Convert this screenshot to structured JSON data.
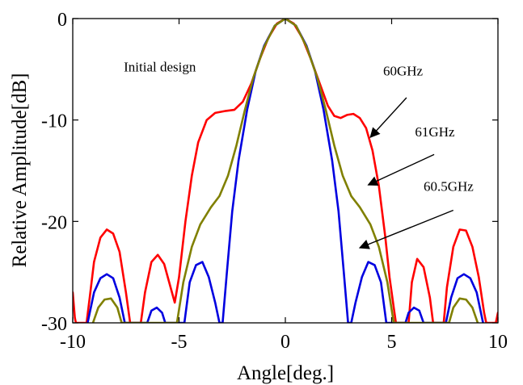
{
  "chart_data": {
    "type": "line",
    "title": "",
    "xlabel": "Angle[deg.]",
    "ylabel": "Relative Amplitude[dB]",
    "xlim": [
      -10,
      10
    ],
    "ylim": [
      -30,
      0
    ],
    "xticks": [
      -10,
      -5,
      0,
      5,
      10
    ],
    "yticks": [
      -30,
      -20,
      -10,
      0
    ],
    "xtick_labels": [
      "-10",
      "-5",
      "0",
      "5",
      "10"
    ],
    "ytick_labels": [
      "-30",
      "-20",
      "-10",
      "0"
    ],
    "grid": false,
    "legend": "none",
    "series": [
      {
        "name": "60GHz",
        "color": "#ff0000",
        "points": [
          [
            -10,
            -27.0
          ],
          [
            -9.9,
            -29.5
          ],
          [
            -9.85,
            -30
          ],
          [
            -9.35,
            -30
          ],
          [
            -9.2,
            -27.5
          ],
          [
            -9.0,
            -24.0
          ],
          [
            -8.7,
            -21.6
          ],
          [
            -8.4,
            -20.8
          ],
          [
            -8.1,
            -21.2
          ],
          [
            -7.8,
            -23.0
          ],
          [
            -7.5,
            -27.0
          ],
          [
            -7.3,
            -30
          ],
          [
            -6.8,
            -30
          ],
          [
            -6.6,
            -27.0
          ],
          [
            -6.3,
            -24.0
          ],
          [
            -6.0,
            -23.3
          ],
          [
            -5.7,
            -24.2
          ],
          [
            -5.4,
            -26.5
          ],
          [
            -5.2,
            -28.0
          ],
          [
            -5.0,
            -25.5
          ],
          [
            -4.7,
            -20.0
          ],
          [
            -4.4,
            -15.5
          ],
          [
            -4.1,
            -12.2
          ],
          [
            -3.7,
            -10.0
          ],
          [
            -3.3,
            -9.3
          ],
          [
            -2.8,
            -9.1
          ],
          [
            -2.4,
            -9.0
          ],
          [
            -2.0,
            -8.2
          ],
          [
            -1.6,
            -6.4
          ],
          [
            -1.2,
            -4.0
          ],
          [
            -0.8,
            -1.9
          ],
          [
            -0.4,
            -0.5
          ],
          [
            0,
            0
          ],
          [
            0.4,
            -0.5
          ],
          [
            0.8,
            -1.9
          ],
          [
            1.2,
            -4.0
          ],
          [
            1.6,
            -6.3
          ],
          [
            2.0,
            -8.6
          ],
          [
            2.3,
            -9.6
          ],
          [
            2.6,
            -9.8
          ],
          [
            2.9,
            -9.5
          ],
          [
            3.2,
            -9.4
          ],
          [
            3.5,
            -9.8
          ],
          [
            3.8,
            -10.8
          ],
          [
            4.1,
            -13.0
          ],
          [
            4.4,
            -16.5
          ],
          [
            4.7,
            -21.5
          ],
          [
            4.9,
            -25.5
          ],
          [
            5.1,
            -28.5
          ],
          [
            5.2,
            -30
          ],
          [
            5.8,
            -30
          ],
          [
            5.95,
            -26.0
          ],
          [
            6.2,
            -23.7
          ],
          [
            6.5,
            -24.5
          ],
          [
            6.8,
            -27.5
          ],
          [
            6.95,
            -30
          ],
          [
            7.45,
            -30
          ],
          [
            7.6,
            -26.5
          ],
          [
            7.9,
            -22.5
          ],
          [
            8.2,
            -20.8
          ],
          [
            8.5,
            -20.9
          ],
          [
            8.8,
            -22.5
          ],
          [
            9.1,
            -25.5
          ],
          [
            9.35,
            -29.0
          ],
          [
            9.45,
            -30
          ],
          [
            9.9,
            -30
          ],
          [
            10,
            -29.0
          ]
        ]
      },
      {
        "name": "60.5GHz",
        "color": "#0000e0",
        "points": [
          [
            -9.3,
            -30
          ],
          [
            -9.0,
            -27.0
          ],
          [
            -8.7,
            -25.6
          ],
          [
            -8.4,
            -25.2
          ],
          [
            -8.1,
            -25.6
          ],
          [
            -7.8,
            -27.5
          ],
          [
            -7.55,
            -30
          ],
          [
            -6.5,
            -30
          ],
          [
            -6.3,
            -28.8
          ],
          [
            -6.05,
            -28.5
          ],
          [
            -5.8,
            -29.0
          ],
          [
            -5.65,
            -30
          ],
          [
            -4.75,
            -30
          ],
          [
            -4.5,
            -26.0
          ],
          [
            -4.2,
            -24.3
          ],
          [
            -3.9,
            -24.0
          ],
          [
            -3.6,
            -25.5
          ],
          [
            -3.3,
            -28.0
          ],
          [
            -3.1,
            -30
          ],
          [
            -2.95,
            -30
          ],
          [
            -2.75,
            -25.0
          ],
          [
            -2.5,
            -19.0
          ],
          [
            -2.2,
            -14.0
          ],
          [
            -1.8,
            -9.0
          ],
          [
            -1.4,
            -5.2
          ],
          [
            -1.0,
            -2.7
          ],
          [
            -0.5,
            -0.7
          ],
          [
            0,
            0
          ],
          [
            0.5,
            -0.7
          ],
          [
            1.0,
            -2.7
          ],
          [
            1.4,
            -5.2
          ],
          [
            1.8,
            -9.0
          ],
          [
            2.2,
            -14.0
          ],
          [
            2.5,
            -19.0
          ],
          [
            2.75,
            -25.0
          ],
          [
            2.95,
            -30
          ],
          [
            3.1,
            -30
          ],
          [
            3.3,
            -28.0
          ],
          [
            3.6,
            -25.5
          ],
          [
            3.9,
            -24.0
          ],
          [
            4.2,
            -24.3
          ],
          [
            4.5,
            -26.0
          ],
          [
            4.75,
            -30
          ],
          [
            5.65,
            -30
          ],
          [
            5.8,
            -29.0
          ],
          [
            6.05,
            -28.5
          ],
          [
            6.3,
            -28.8
          ],
          [
            6.5,
            -30
          ],
          [
            7.55,
            -30
          ],
          [
            7.8,
            -27.5
          ],
          [
            8.1,
            -25.6
          ],
          [
            8.4,
            -25.2
          ],
          [
            8.7,
            -25.6
          ],
          [
            9.0,
            -27.0
          ],
          [
            9.3,
            -30
          ]
        ]
      },
      {
        "name": "61GHz",
        "color": "#808000",
        "points": [
          [
            -9.05,
            -30
          ],
          [
            -8.8,
            -28.5
          ],
          [
            -8.5,
            -27.7
          ],
          [
            -8.2,
            -27.6
          ],
          [
            -7.9,
            -28.5
          ],
          [
            -7.7,
            -30
          ],
          [
            -5.1,
            -30
          ],
          [
            -4.8,
            -26.0
          ],
          [
            -4.4,
            -22.5
          ],
          [
            -4.0,
            -20.3
          ],
          [
            -3.5,
            -18.6
          ],
          [
            -3.1,
            -17.5
          ],
          [
            -2.7,
            -15.5
          ],
          [
            -2.3,
            -12.5
          ],
          [
            -1.9,
            -9.0
          ],
          [
            -1.5,
            -5.8
          ],
          [
            -1.0,
            -2.8
          ],
          [
            -0.5,
            -0.7
          ],
          [
            0,
            0
          ],
          [
            0.5,
            -0.7
          ],
          [
            1.0,
            -2.8
          ],
          [
            1.5,
            -5.8
          ],
          [
            1.9,
            -9.0
          ],
          [
            2.3,
            -12.5
          ],
          [
            2.7,
            -15.5
          ],
          [
            3.1,
            -17.5
          ],
          [
            3.5,
            -18.6
          ],
          [
            4.0,
            -20.3
          ],
          [
            4.4,
            -22.5
          ],
          [
            4.8,
            -26.0
          ],
          [
            5.1,
            -30
          ],
          [
            7.7,
            -30
          ],
          [
            7.9,
            -28.5
          ],
          [
            8.2,
            -27.6
          ],
          [
            8.5,
            -27.7
          ],
          [
            8.8,
            -28.5
          ],
          [
            9.05,
            -30
          ]
        ]
      }
    ],
    "annotations": [
      {
        "text": "Initial design",
        "x": -7.6,
        "y": -5.2,
        "arrow": null
      },
      {
        "text": "60GHz",
        "x": 4.6,
        "y": -5.6,
        "arrow": {
          "from": [
            5.7,
            -7.8
          ],
          "to": [
            4.0,
            -11.7
          ]
        }
      },
      {
        "text": "61GHz",
        "x": 6.1,
        "y": -11.6,
        "arrow": {
          "from": [
            7.0,
            -13.4
          ],
          "to": [
            3.9,
            -16.4
          ]
        }
      },
      {
        "text": "60.5GHz",
        "x": 6.5,
        "y": -17.0,
        "arrow": {
          "from": [
            7.9,
            -18.9
          ],
          "to": [
            3.5,
            -22.6
          ]
        }
      }
    ]
  }
}
